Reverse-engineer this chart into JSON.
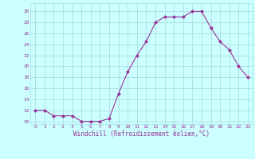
{
  "x": [
    0,
    1,
    2,
    3,
    4,
    5,
    6,
    7,
    8,
    9,
    10,
    11,
    12,
    13,
    14,
    15,
    16,
    17,
    18,
    19,
    20,
    21,
    22,
    23
  ],
  "y": [
    12,
    12,
    11,
    11,
    11,
    10,
    10,
    10,
    10.5,
    15,
    19,
    22,
    24.5,
    28,
    29,
    29,
    29,
    30,
    30,
    27,
    24.5,
    23,
    20,
    18
  ],
  "line_color": "#993399",
  "marker_color": "#993399",
  "bg_color": "#ccffff",
  "grid_color": "#aadddd",
  "xlabel": "Windchill (Refroidissement éolien,°C)",
  "xlabel_color": "#993399",
  "ylabel_ticks": [
    10,
    12,
    14,
    16,
    18,
    20,
    22,
    24,
    26,
    28,
    30
  ],
  "ylim": [
    9.5,
    31.5
  ],
  "xlim": [
    -0.5,
    23.5
  ],
  "xtick_labels": [
    "0",
    "1",
    "2",
    "3",
    "4",
    "5",
    "6",
    "7",
    "8",
    "9",
    "10",
    "11",
    "12",
    "13",
    "14",
    "15",
    "16",
    "17",
    "18",
    "19",
    "20",
    "21",
    "22",
    "23"
  ]
}
